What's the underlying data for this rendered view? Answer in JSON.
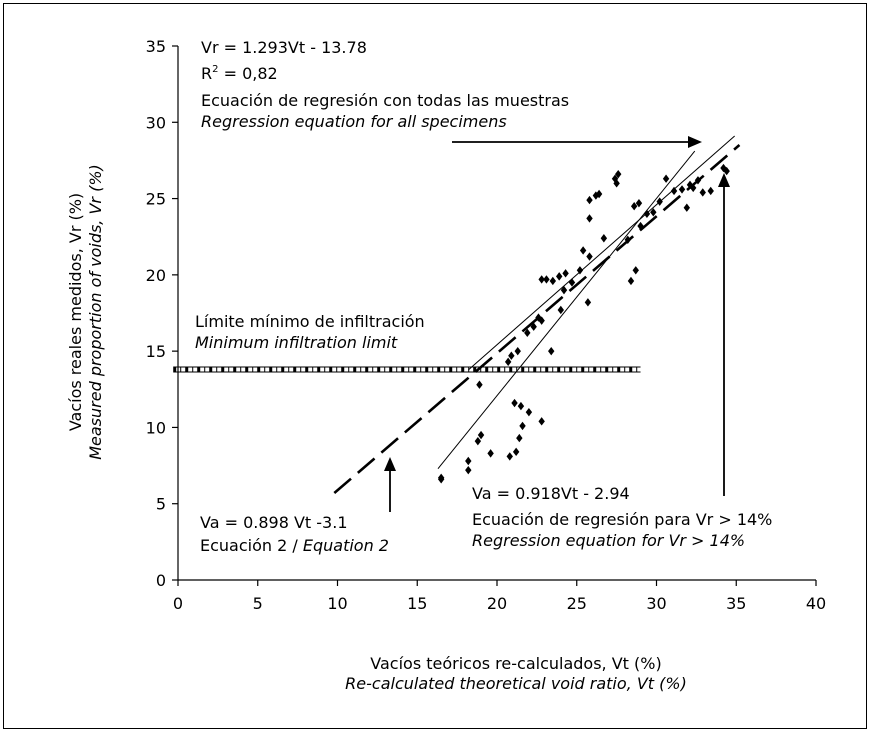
{
  "chart_data": {
    "type": "scatter",
    "xlabel": "Vacíos teóricos re-calculados, Vt (%)",
    "xlabel_en": "Re-calculated theoretical void ratio, Vt (%)",
    "ylabel": "Vacíos reales medidos, Vr (%)",
    "ylabel_en": "Measured proportion of voids, Vr (%)",
    "xlim": [
      0,
      40
    ],
    "ylim": [
      0,
      35
    ],
    "xticks": [
      "0",
      "5",
      "10",
      "15",
      "20",
      "25",
      "30",
      "35",
      "40"
    ],
    "yticks": [
      "0",
      "5",
      "10",
      "15",
      "20",
      "25",
      "30",
      "35"
    ],
    "grid": false,
    "points": [
      [
        16.5,
        6.7
      ],
      [
        16.5,
        6.6
      ],
      [
        18.2,
        7.2
      ],
      [
        18.2,
        7.8
      ],
      [
        18.8,
        9.1
      ],
      [
        19.0,
        9.5
      ],
      [
        18.9,
        12.8
      ],
      [
        19.6,
        8.3
      ],
      [
        20.8,
        8.1
      ],
      [
        21.2,
        8.4
      ],
      [
        21.4,
        9.3
      ],
      [
        21.6,
        10.1
      ],
      [
        21.1,
        11.6
      ],
      [
        21.5,
        11.4
      ],
      [
        22.0,
        11.0
      ],
      [
        22.8,
        10.4
      ],
      [
        20.7,
        14.3
      ],
      [
        20.9,
        14.7
      ],
      [
        21.3,
        15.0
      ],
      [
        21.9,
        16.2
      ],
      [
        22.3,
        16.6
      ],
      [
        22.6,
        17.2
      ],
      [
        22.8,
        17.0
      ],
      [
        22.8,
        19.7
      ],
      [
        23.1,
        19.7
      ],
      [
        23.4,
        15.0
      ],
      [
        23.5,
        19.6
      ],
      [
        23.9,
        19.9
      ],
      [
        24.0,
        17.7
      ],
      [
        24.3,
        20.1
      ],
      [
        24.2,
        19.0
      ],
      [
        24.7,
        19.5
      ],
      [
        25.2,
        20.3
      ],
      [
        25.7,
        18.2
      ],
      [
        25.8,
        21.2
      ],
      [
        25.4,
        21.6
      ],
      [
        25.8,
        23.7
      ],
      [
        25.8,
        24.9
      ],
      [
        26.2,
        25.2
      ],
      [
        26.4,
        25.3
      ],
      [
        26.7,
        22.4
      ],
      [
        27.4,
        26.3
      ],
      [
        27.6,
        26.6
      ],
      [
        27.5,
        26.0
      ],
      [
        28.2,
        22.3
      ],
      [
        28.4,
        19.6
      ],
      [
        28.7,
        20.3
      ],
      [
        28.6,
        24.5
      ],
      [
        28.9,
        24.7
      ],
      [
        29.0,
        23.2
      ],
      [
        29.4,
        24.0
      ],
      [
        29.8,
        24.1
      ],
      [
        30.2,
        24.8
      ],
      [
        30.6,
        26.3
      ],
      [
        31.1,
        25.5
      ],
      [
        31.6,
        25.6
      ],
      [
        31.9,
        24.4
      ],
      [
        32.1,
        25.9
      ],
      [
        32.3,
        25.7
      ],
      [
        32.6,
        26.2
      ],
      [
        32.9,
        25.4
      ],
      [
        33.4,
        25.5
      ],
      [
        34.2,
        27.0
      ],
      [
        34.4,
        26.8
      ]
    ],
    "lines": [
      {
        "name": "Vr = 1.293Vt - 13.78",
        "slope": 1.293,
        "intercept": -13.78,
        "x": [
          16.3,
          32.4
        ],
        "style": "thin"
      },
      {
        "name": "Va = 0.918Vt - 2.94",
        "slope": 0.918,
        "intercept": -2.94,
        "x": [
          18.2,
          34.9
        ],
        "style": "thin"
      },
      {
        "name": "Va = 0.898 Vt -3.1",
        "slope": 0.898,
        "intercept": -3.1,
        "x": [
          9.8,
          35.2
        ],
        "style": "dashed"
      },
      {
        "name": "Límite mínimo de infiltración",
        "y": 13.8,
        "x": [
          -0.3,
          29.0
        ],
        "style": "dashdot"
      }
    ],
    "annotations": {
      "eq1_line1": "Vr = 1.293Vt - 13.78",
      "eq1_r2_base": "R",
      "eq1_r2_sup": "2",
      "eq1_r2_value": " = 0,82",
      "eq1_es": "Ecuación de regresión con todas las muestras",
      "eq1_en": "Regression equation for all specimens",
      "limit_es": "Límite mínimo de infiltración",
      "limit_en": "Minimum infiltration limit",
      "eq2_line": "Va = 0.898 Vt -3.1",
      "eq2_es": "Ecuación 2 / ",
      "eq2_en": "Equation 2",
      "eq3_line": "Va = 0.918Vt - 2.94",
      "eq3_es": "Ecuación de regresión para Vr > 14%",
      "eq3_en": "Regression equation for Vr > 14%"
    }
  }
}
